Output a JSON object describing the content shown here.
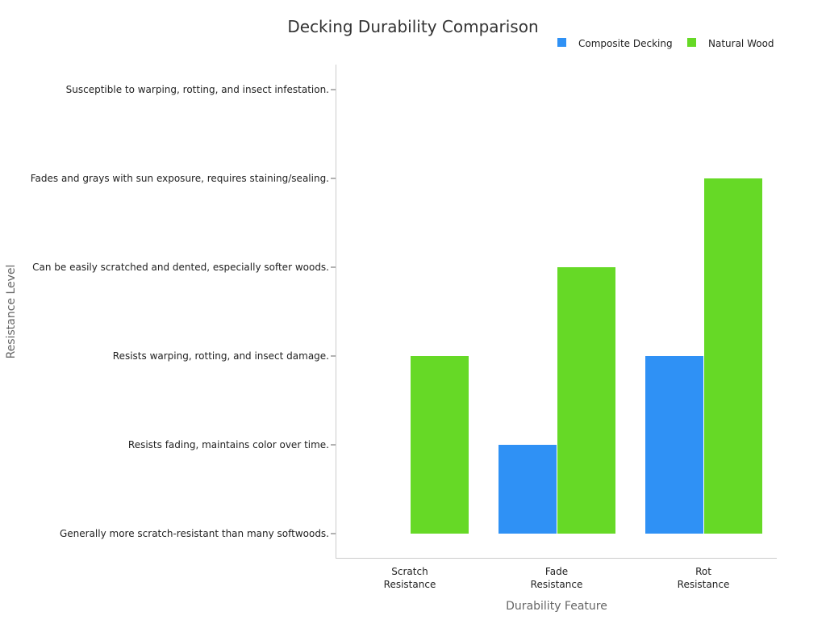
{
  "chart_data": {
    "type": "bar",
    "title": "Decking Durability Comparison",
    "xlabel": "Durability Feature",
    "ylabel": "Resistance Level",
    "categories": [
      "Scratch\nResistance",
      "Fade\nResistance",
      "Rot\nResistance"
    ],
    "y_categories": [
      "Generally more scratch-resistant than many softwoods.",
      "Resists fading, maintains color over time.",
      "Resists warping, rotting, and insect damage.",
      "Can be easily scratched and dented, especially softer woods.",
      "Fades and grays with sun exposure, requires staining/sealing.",
      "Susceptible to warping, rotting, and insect infestation."
    ],
    "series": [
      {
        "name": "Composite Decking",
        "color": "#2f91f5",
        "values": [
          0,
          1,
          2
        ]
      },
      {
        "name": "Natural Wood",
        "color": "#66d926",
        "values": [
          2,
          3,
          4
        ]
      }
    ],
    "ylim": [
      0,
      5
    ],
    "grid": false,
    "legend": "top-right"
  }
}
